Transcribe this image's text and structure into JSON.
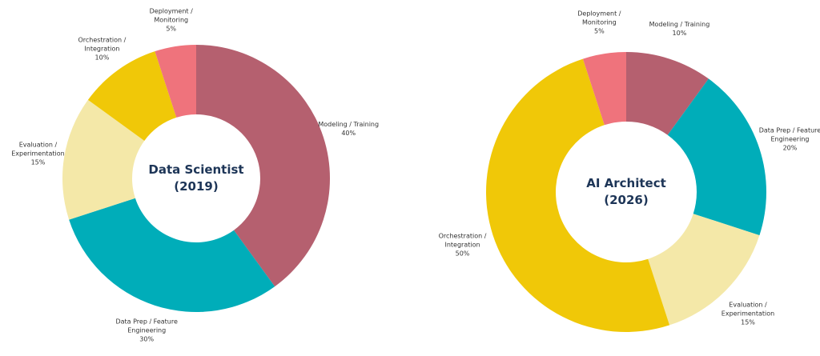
{
  "chart_data": [
    {
      "type": "donut",
      "title": "Data Scientist (2019)",
      "categories": [
        "Modeling / Training",
        "Data Prep / Feature Engineering",
        "Evaluation / Experimentation",
        "Orchestration / Integration",
        "Deployment / Monitoring"
      ],
      "values": [
        40,
        30,
        15,
        10,
        5
      ],
      "value_labels": [
        "40%",
        "30%",
        "15%",
        "10%",
        "5%"
      ],
      "colors": [
        "#b5606f",
        "#00adb9",
        "#f4e8a8",
        "#f0c808",
        "#ef737c"
      ]
    },
    {
      "type": "donut",
      "title": "AI Architect (2026)",
      "categories": [
        "Modeling / Training",
        "Data Prep / Feature Engineering",
        "Evaluation / Experimentation",
        "Orchestration / Integration",
        "Deployment / Monitoring"
      ],
      "values": [
        10,
        20,
        15,
        50,
        5
      ],
      "value_labels": [
        "10%",
        "20%",
        "15%",
        "50%",
        "5%"
      ],
      "colors": [
        "#b5606f",
        "#00adb9",
        "#f4e8a8",
        "#f0c808",
        "#ef737c"
      ]
    }
  ]
}
